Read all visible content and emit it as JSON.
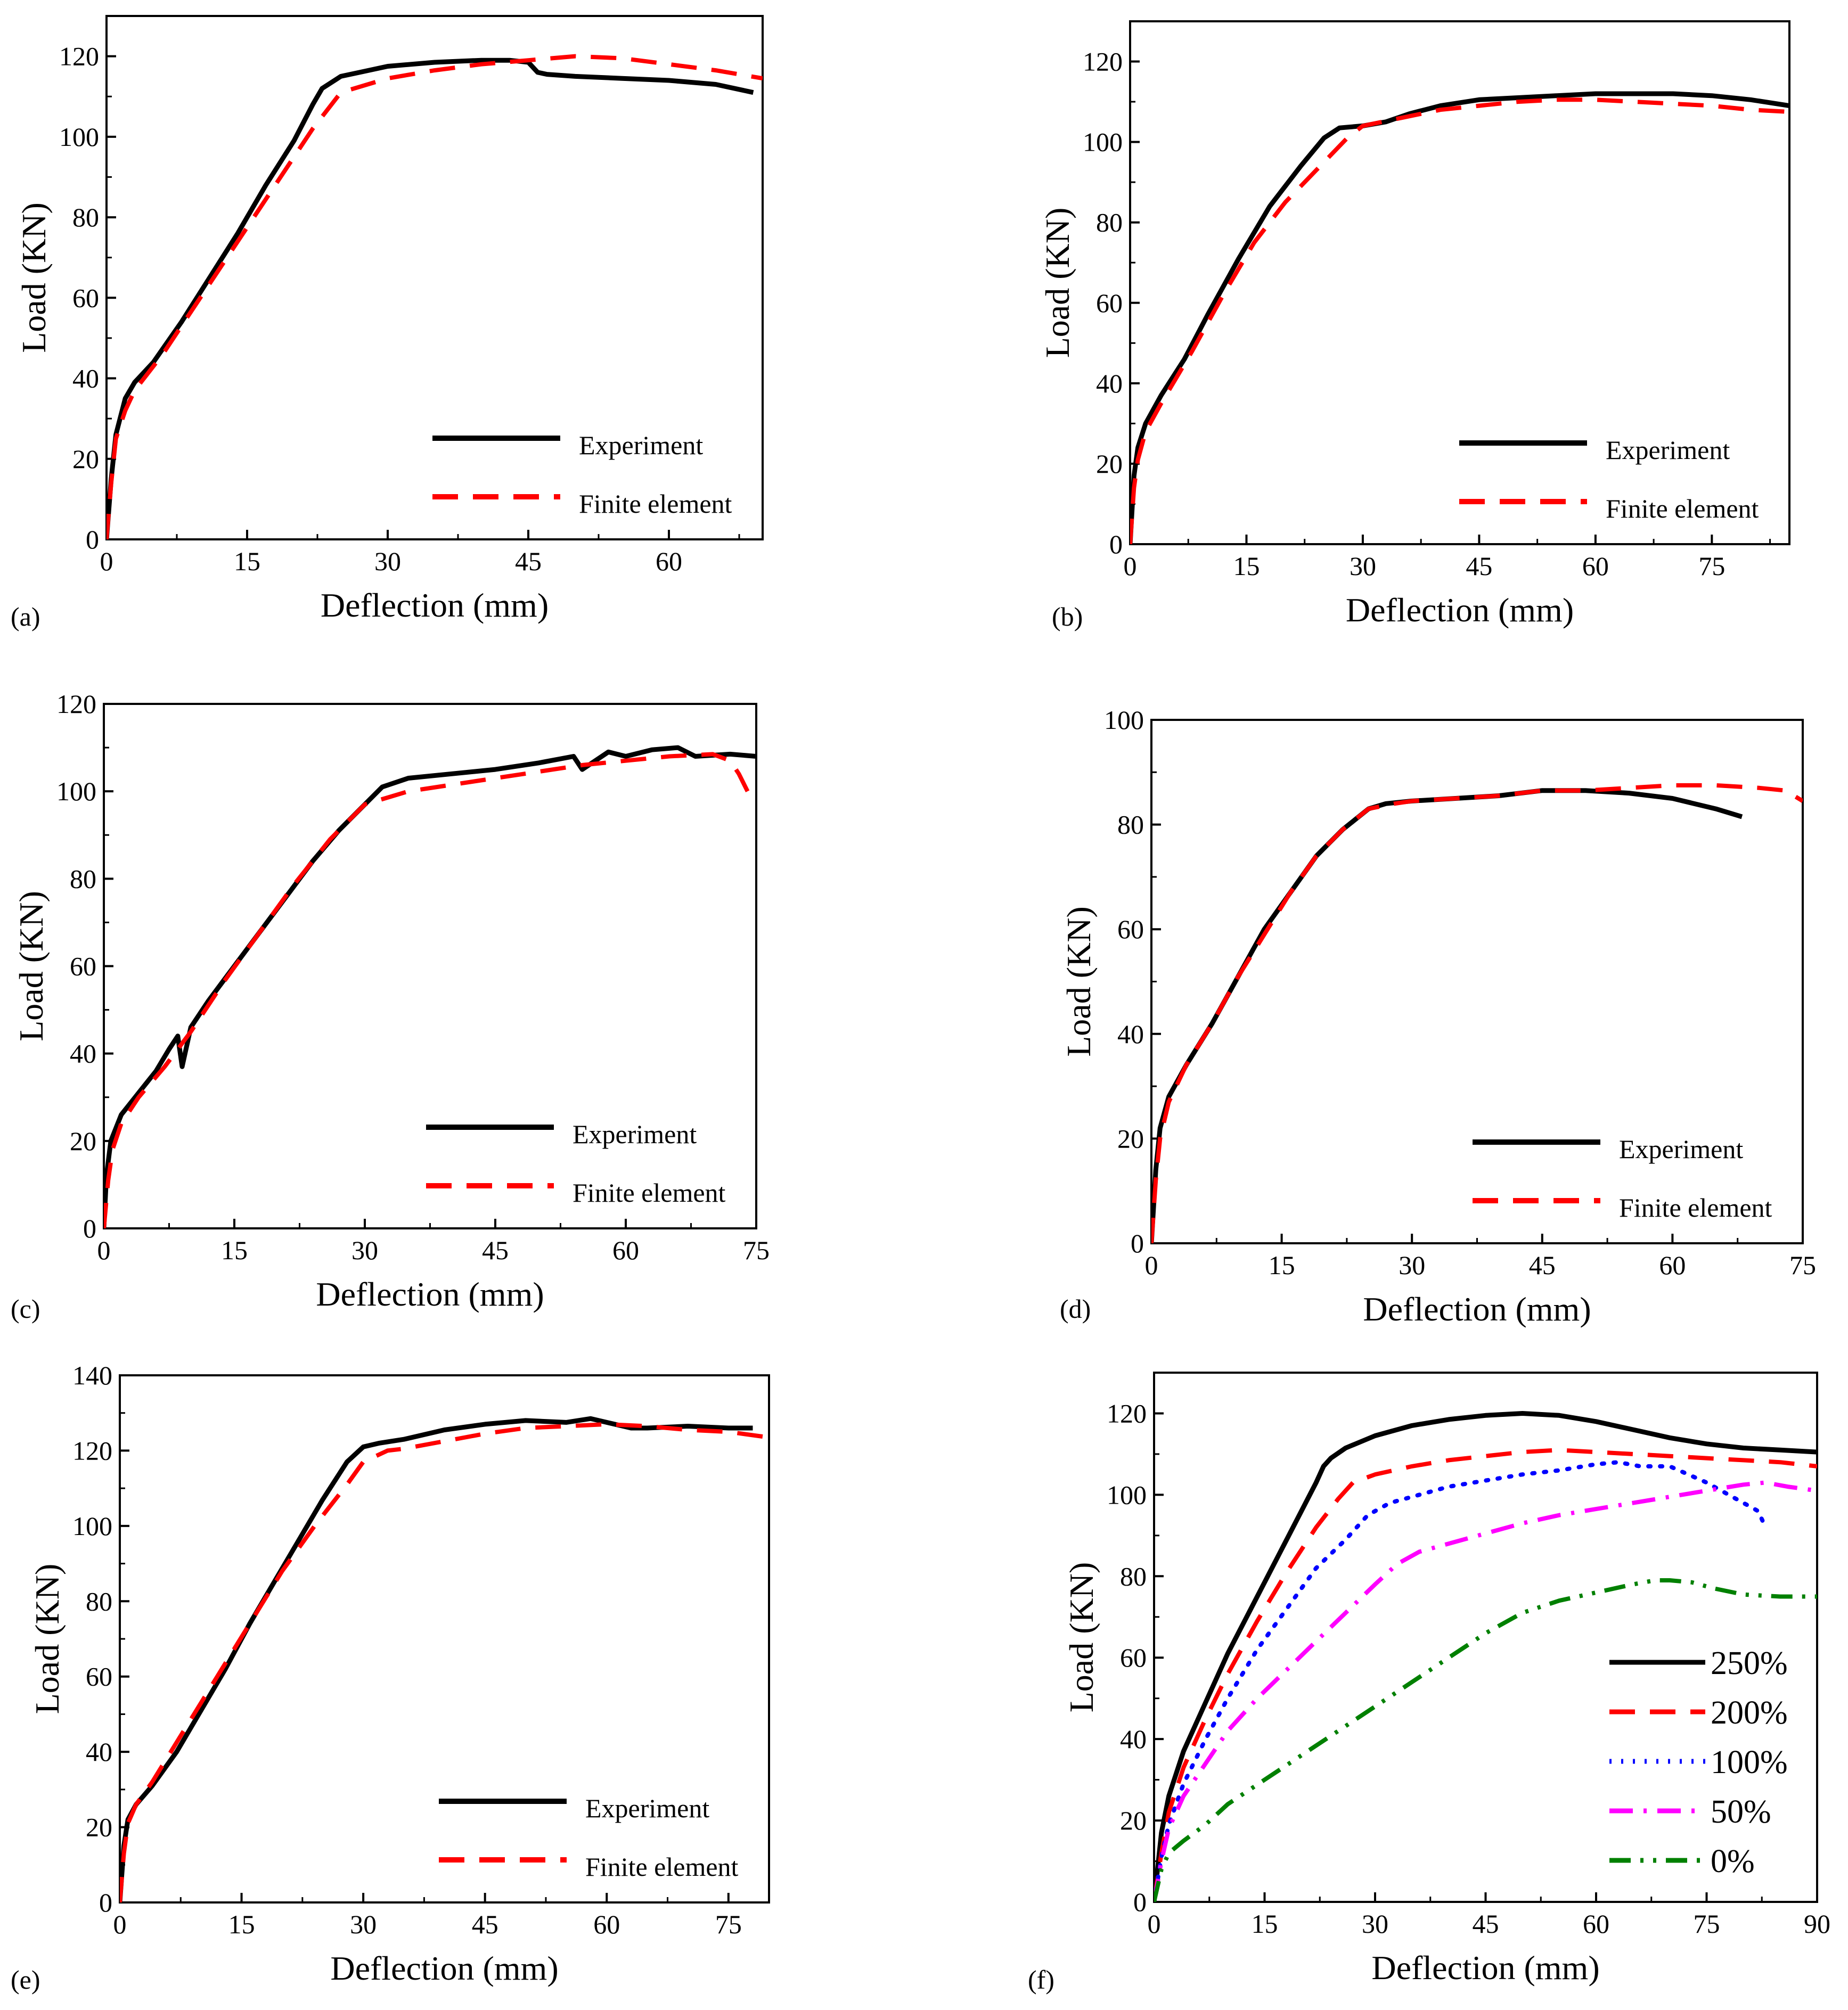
{
  "chart_data": [
    {
      "panel": "(a)",
      "type": "line",
      "xlabel": "Deflection (mm)",
      "ylabel": "Load (KN)",
      "xlim": [
        0,
        70
      ],
      "ylim": [
        0,
        130
      ],
      "xticks": [
        0,
        15,
        30,
        45,
        60
      ],
      "yticks": [
        0,
        20,
        40,
        60,
        80,
        100,
        120
      ],
      "legend_position": "bottom-right",
      "series": [
        {
          "name": "Experiment",
          "color": "#000000",
          "style": "solid",
          "x": [
            0,
            0.5,
            1,
            2,
            3,
            5,
            8,
            11,
            14,
            17,
            20,
            22,
            23,
            25,
            27,
            30,
            35,
            40,
            43,
            45,
            46,
            47,
            50,
            55,
            60,
            65,
            69
          ],
          "y": [
            0,
            15,
            26,
            35,
            39,
            44,
            54,
            65,
            76,
            88,
            99,
            108,
            112,
            115,
            116,
            117.5,
            118.5,
            119,
            119,
            118.5,
            116,
            115.5,
            115,
            114.5,
            114,
            113,
            111
          ]
        },
        {
          "name": "Finite element",
          "color": "#ff0000",
          "style": "dashed",
          "x": [
            0,
            0.5,
            1,
            2,
            3,
            6,
            10,
            14,
            18,
            22,
            25,
            30,
            35,
            40,
            45,
            50,
            55,
            60,
            65,
            70
          ],
          "y": [
            0,
            14,
            25,
            32,
            37,
            46,
            60,
            74,
            88,
            102,
            111,
            114.5,
            116.5,
            118,
            119,
            120,
            119.5,
            118,
            116.5,
            114.5
          ]
        }
      ]
    },
    {
      "panel": "(b)",
      "type": "line",
      "xlabel": "Deflection (mm)",
      "ylabel": "Load (KN)",
      "xlim": [
        0,
        85
      ],
      "ylim": [
        0,
        130
      ],
      "xticks": [
        0,
        15,
        30,
        45,
        60,
        75
      ],
      "yticks": [
        0,
        20,
        40,
        60,
        80,
        100,
        120
      ],
      "legend_position": "bottom-right",
      "series": [
        {
          "name": "Experiment",
          "color": "#000000",
          "style": "solid",
          "x": [
            0,
            0.5,
            1,
            2,
            4,
            7,
            10,
            14,
            18,
            22,
            25,
            27,
            30,
            33,
            36,
            40,
            45,
            50,
            55,
            60,
            65,
            70,
            75,
            80,
            85
          ],
          "y": [
            0,
            17,
            24,
            30,
            37,
            46,
            57,
            71,
            84,
            94,
            101,
            103.5,
            104,
            105,
            107,
            109,
            110.5,
            111,
            111.5,
            112,
            112,
            112,
            111.5,
            110.5,
            109
          ]
        },
        {
          "name": "Finite element",
          "color": "#ff0000",
          "style": "dashed",
          "x": [
            0,
            0.5,
            1,
            2,
            4,
            8,
            12,
            16,
            20,
            24,
            28,
            30,
            35,
            40,
            45,
            50,
            55,
            60,
            65,
            70,
            75,
            80,
            85
          ],
          "y": [
            0,
            14,
            21,
            28,
            35,
            48,
            62,
            75,
            85,
            93,
            101,
            104,
            106,
            108,
            109,
            110,
            110.5,
            110.5,
            110,
            109.5,
            109,
            108,
            107.5
          ]
        }
      ]
    },
    {
      "panel": "(c)",
      "type": "line",
      "xlabel": "Deflection (mm)",
      "ylabel": "Load (KN)",
      "xlim": [
        0,
        75
      ],
      "ylim": [
        0,
        120
      ],
      "xticks": [
        0,
        15,
        30,
        45,
        60,
        75
      ],
      "yticks": [
        0,
        20,
        40,
        60,
        80,
        100,
        120
      ],
      "legend_position": "bottom-right",
      "series": [
        {
          "name": "Experiment",
          "color": "#000000",
          "style": "solid",
          "x": [
            0,
            0.3,
            0.8,
            2,
            4,
            6,
            7.5,
            8.5,
            9,
            10,
            12,
            15,
            18,
            21,
            24,
            27,
            30,
            32,
            35,
            40,
            45,
            50,
            54,
            55,
            58,
            60,
            63,
            66,
            68,
            72,
            75
          ],
          "y": [
            0,
            12,
            20,
            26,
            31,
            36,
            41,
            44,
            37,
            46,
            52,
            60,
            68,
            76,
            84,
            91,
            97,
            101,
            103,
            104,
            105,
            106.5,
            108,
            105,
            109,
            108,
            109.5,
            110,
            108,
            108.5,
            108
          ]
        },
        {
          "name": "Finite element",
          "color": "#ff0000",
          "style": "dashed",
          "x": [
            0,
            0.5,
            1,
            2,
            4,
            7,
            10,
            14,
            18,
            22,
            26,
            30,
            35,
            40,
            45,
            50,
            55,
            60,
            65,
            70,
            72,
            73,
            74
          ],
          "y": [
            0,
            11,
            18,
            24,
            30,
            37,
            45,
            57,
            68,
            79,
            89,
            97,
            100,
            101.5,
            103,
            104.5,
            106,
            107,
            108,
            108.5,
            107,
            104,
            100
          ]
        }
      ]
    },
    {
      "panel": "(d)",
      "type": "line",
      "xlabel": "Deflection (mm)",
      "ylabel": "Load (KN)",
      "xlim": [
        0,
        75
      ],
      "ylim": [
        0,
        100
      ],
      "xticks": [
        0,
        15,
        30,
        45,
        60,
        75
      ],
      "yticks": [
        0,
        20,
        40,
        60,
        80,
        100
      ],
      "legend_position": "bottom-right",
      "series": [
        {
          "name": "Experiment",
          "color": "#000000",
          "style": "solid",
          "x": [
            0,
            0.5,
            1,
            2,
            4,
            7,
            10,
            13,
            16,
            19,
            22,
            25,
            27,
            30,
            35,
            40,
            45,
            50,
            55,
            60,
            65,
            68
          ],
          "y": [
            0,
            14,
            22,
            28,
            34,
            42,
            51,
            60,
            67,
            74,
            79,
            83,
            84,
            84.5,
            85,
            85.5,
            86.5,
            86.5,
            86,
            85,
            83,
            81.5
          ]
        },
        {
          "name": "Finite element",
          "color": "#ff0000",
          "style": "dashed",
          "x": [
            0,
            0.5,
            1,
            2,
            4,
            7,
            10,
            13,
            16,
            19,
            22,
            25,
            28,
            30,
            35,
            40,
            45,
            50,
            55,
            60,
            65,
            70,
            73,
            75
          ],
          "y": [
            0,
            12,
            20,
            27,
            34,
            42,
            51,
            59,
            67,
            74,
            79,
            83,
            84,
            84.5,
            85,
            85.5,
            86.5,
            86.5,
            87,
            87.5,
            87.5,
            87,
            86.5,
            84.5
          ]
        }
      ]
    },
    {
      "panel": "(e)",
      "type": "line",
      "xlabel": "Deflection (mm)",
      "ylabel": "Load (KN)",
      "xlim": [
        0,
        80
      ],
      "ylim": [
        0,
        140
      ],
      "xticks": [
        0,
        15,
        30,
        45,
        60,
        75
      ],
      "yticks": [
        0,
        20,
        40,
        60,
        80,
        100,
        120,
        140
      ],
      "legend_position": "bottom-right",
      "series": [
        {
          "name": "Experiment",
          "color": "#000000",
          "style": "solid",
          "x": [
            0,
            0.5,
            1,
            2,
            4,
            7,
            10,
            13,
            16,
            19,
            22,
            25,
            28,
            30,
            32,
            35,
            40,
            45,
            50,
            55,
            58,
            60,
            63,
            65,
            70,
            75,
            78
          ],
          "y": [
            0,
            15,
            22,
            26,
            31,
            40,
            51,
            62,
            74,
            85,
            96,
            107,
            117,
            121,
            122,
            123,
            125.5,
            127,
            128,
            127.5,
            128.5,
            127.5,
            126,
            126,
            126.5,
            126,
            126
          ]
        },
        {
          "name": "Finite element",
          "color": "#ff0000",
          "style": "dashed",
          "x": [
            0,
            0.5,
            1,
            2,
            4,
            8,
            12,
            16,
            20,
            24,
            28,
            30,
            33,
            35,
            40,
            45,
            50,
            55,
            60,
            65,
            70,
            75,
            80
          ],
          "y": [
            0,
            13,
            21,
            26,
            32,
            46,
            60,
            74,
            88,
            100,
            111,
            117,
            120,
            120.5,
            122.5,
            124.5,
            126,
            126.5,
            127,
            126.5,
            125.5,
            125,
            123.5
          ]
        }
      ]
    },
    {
      "panel": "(f)",
      "type": "line",
      "xlabel": "Deflection (mm)",
      "ylabel": "Load (KN)",
      "xlim": [
        0,
        90
      ],
      "ylim": [
        0,
        130
      ],
      "xticks": [
        0,
        15,
        30,
        45,
        60,
        75,
        90
      ],
      "yticks": [
        0,
        20,
        40,
        60,
        80,
        100,
        120
      ],
      "legend_position": "bottom-right",
      "series": [
        {
          "name": "250%",
          "color": "#000000",
          "style": "solid",
          "x": [
            0,
            1,
            2,
            4,
            7,
            10,
            14,
            18,
            22,
            23,
            24,
            26,
            30,
            35,
            40,
            45,
            50,
            55,
            60,
            65,
            70,
            75,
            80,
            85,
            90
          ],
          "y": [
            0,
            17,
            26,
            37,
            49,
            61,
            75,
            89,
            103,
            107,
            109,
            111.5,
            114.5,
            117,
            118.5,
            119.5,
            120,
            119.5,
            118,
            116,
            114,
            112.5,
            111.5,
            111,
            110.5
          ]
        },
        {
          "name": "200%",
          "color": "#ff0000",
          "style": "dashed",
          "x": [
            0,
            1,
            2,
            4,
            7,
            10,
            14,
            18,
            22,
            25,
            27,
            30,
            35,
            40,
            45,
            50,
            55,
            60,
            65,
            70,
            75,
            80,
            85,
            90
          ],
          "y": [
            0,
            12,
            22,
            33,
            45,
            56,
            69,
            81,
            92,
            99,
            103,
            105,
            107,
            108.5,
            109.5,
            110.5,
            111,
            110.5,
            110,
            109.5,
            109,
            108.5,
            108,
            107
          ]
        },
        {
          "name": "100%",
          "color": "#0000ff",
          "style": "dotted",
          "x": [
            0,
            1,
            2,
            4,
            7,
            10,
            14,
            18,
            22,
            26,
            29,
            32,
            36,
            40,
            45,
            50,
            55,
            60,
            63,
            66,
            70,
            75,
            78,
            80,
            82,
            83
          ],
          "y": [
            0,
            11,
            19,
            29,
            40,
            50,
            62,
            72,
            82,
            89,
            95,
            98,
            100,
            102,
            103.5,
            105,
            106,
            107.5,
            108,
            107,
            107,
            103,
            100,
            98,
            96,
            92
          ]
        },
        {
          "name": "50%",
          "color": "#ff00ff",
          "style": "dashdot",
          "x": [
            0,
            1,
            2,
            4,
            7,
            10,
            14,
            18,
            22,
            26,
            30,
            33,
            36,
            40,
            45,
            50,
            55,
            60,
            65,
            70,
            75,
            80,
            83,
            86,
            90
          ],
          "y": [
            0,
            10,
            18,
            26,
            34,
            42,
            50,
            57,
            64,
            71,
            78,
            83,
            86,
            88,
            90.5,
            93,
            95,
            96.5,
            98,
            99.5,
            101,
            102.5,
            103,
            102,
            101
          ]
        },
        {
          "name": "0%",
          "color": "#008000",
          "style": "dashdotdot",
          "x": [
            0,
            1,
            2,
            4,
            7,
            10,
            15,
            20,
            25,
            30,
            35,
            40,
            45,
            50,
            55,
            60,
            65,
            68,
            70,
            73,
            76,
            80,
            85,
            90
          ],
          "y": [
            0,
            8,
            12,
            15,
            19,
            24,
            30,
            36,
            42,
            48,
            54,
            60,
            66,
            71,
            74,
            76,
            78,
            79,
            79,
            78.5,
            77,
            75.5,
            75,
            75
          ]
        }
      ]
    }
  ]
}
